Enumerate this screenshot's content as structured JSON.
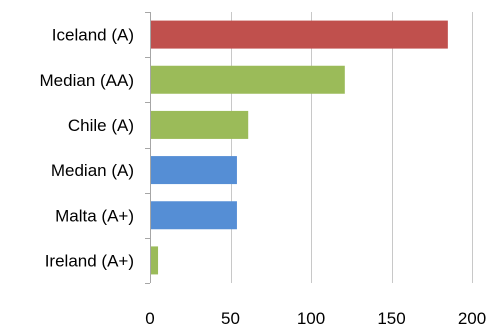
{
  "chart_data": {
    "type": "bar",
    "orientation": "horizontal",
    "title": "",
    "xlabel": "",
    "ylabel": "",
    "categories": [
      "Iceland (A)",
      "Median (AA)",
      "Chile (A)",
      "Median (A)",
      "Malta (A+)",
      "Ireland (A+)"
    ],
    "values": [
      185,
      121,
      61,
      54,
      54,
      5
    ],
    "bar_colors": [
      "#c0504d",
      "#9bbb59",
      "#9bbb59",
      "#558ed5",
      "#558ed5",
      "#9bbb59"
    ],
    "xlim": [
      0,
      200
    ],
    "xticks": [
      0,
      50,
      100,
      150,
      200
    ],
    "grid": true,
    "legend": "none"
  }
}
